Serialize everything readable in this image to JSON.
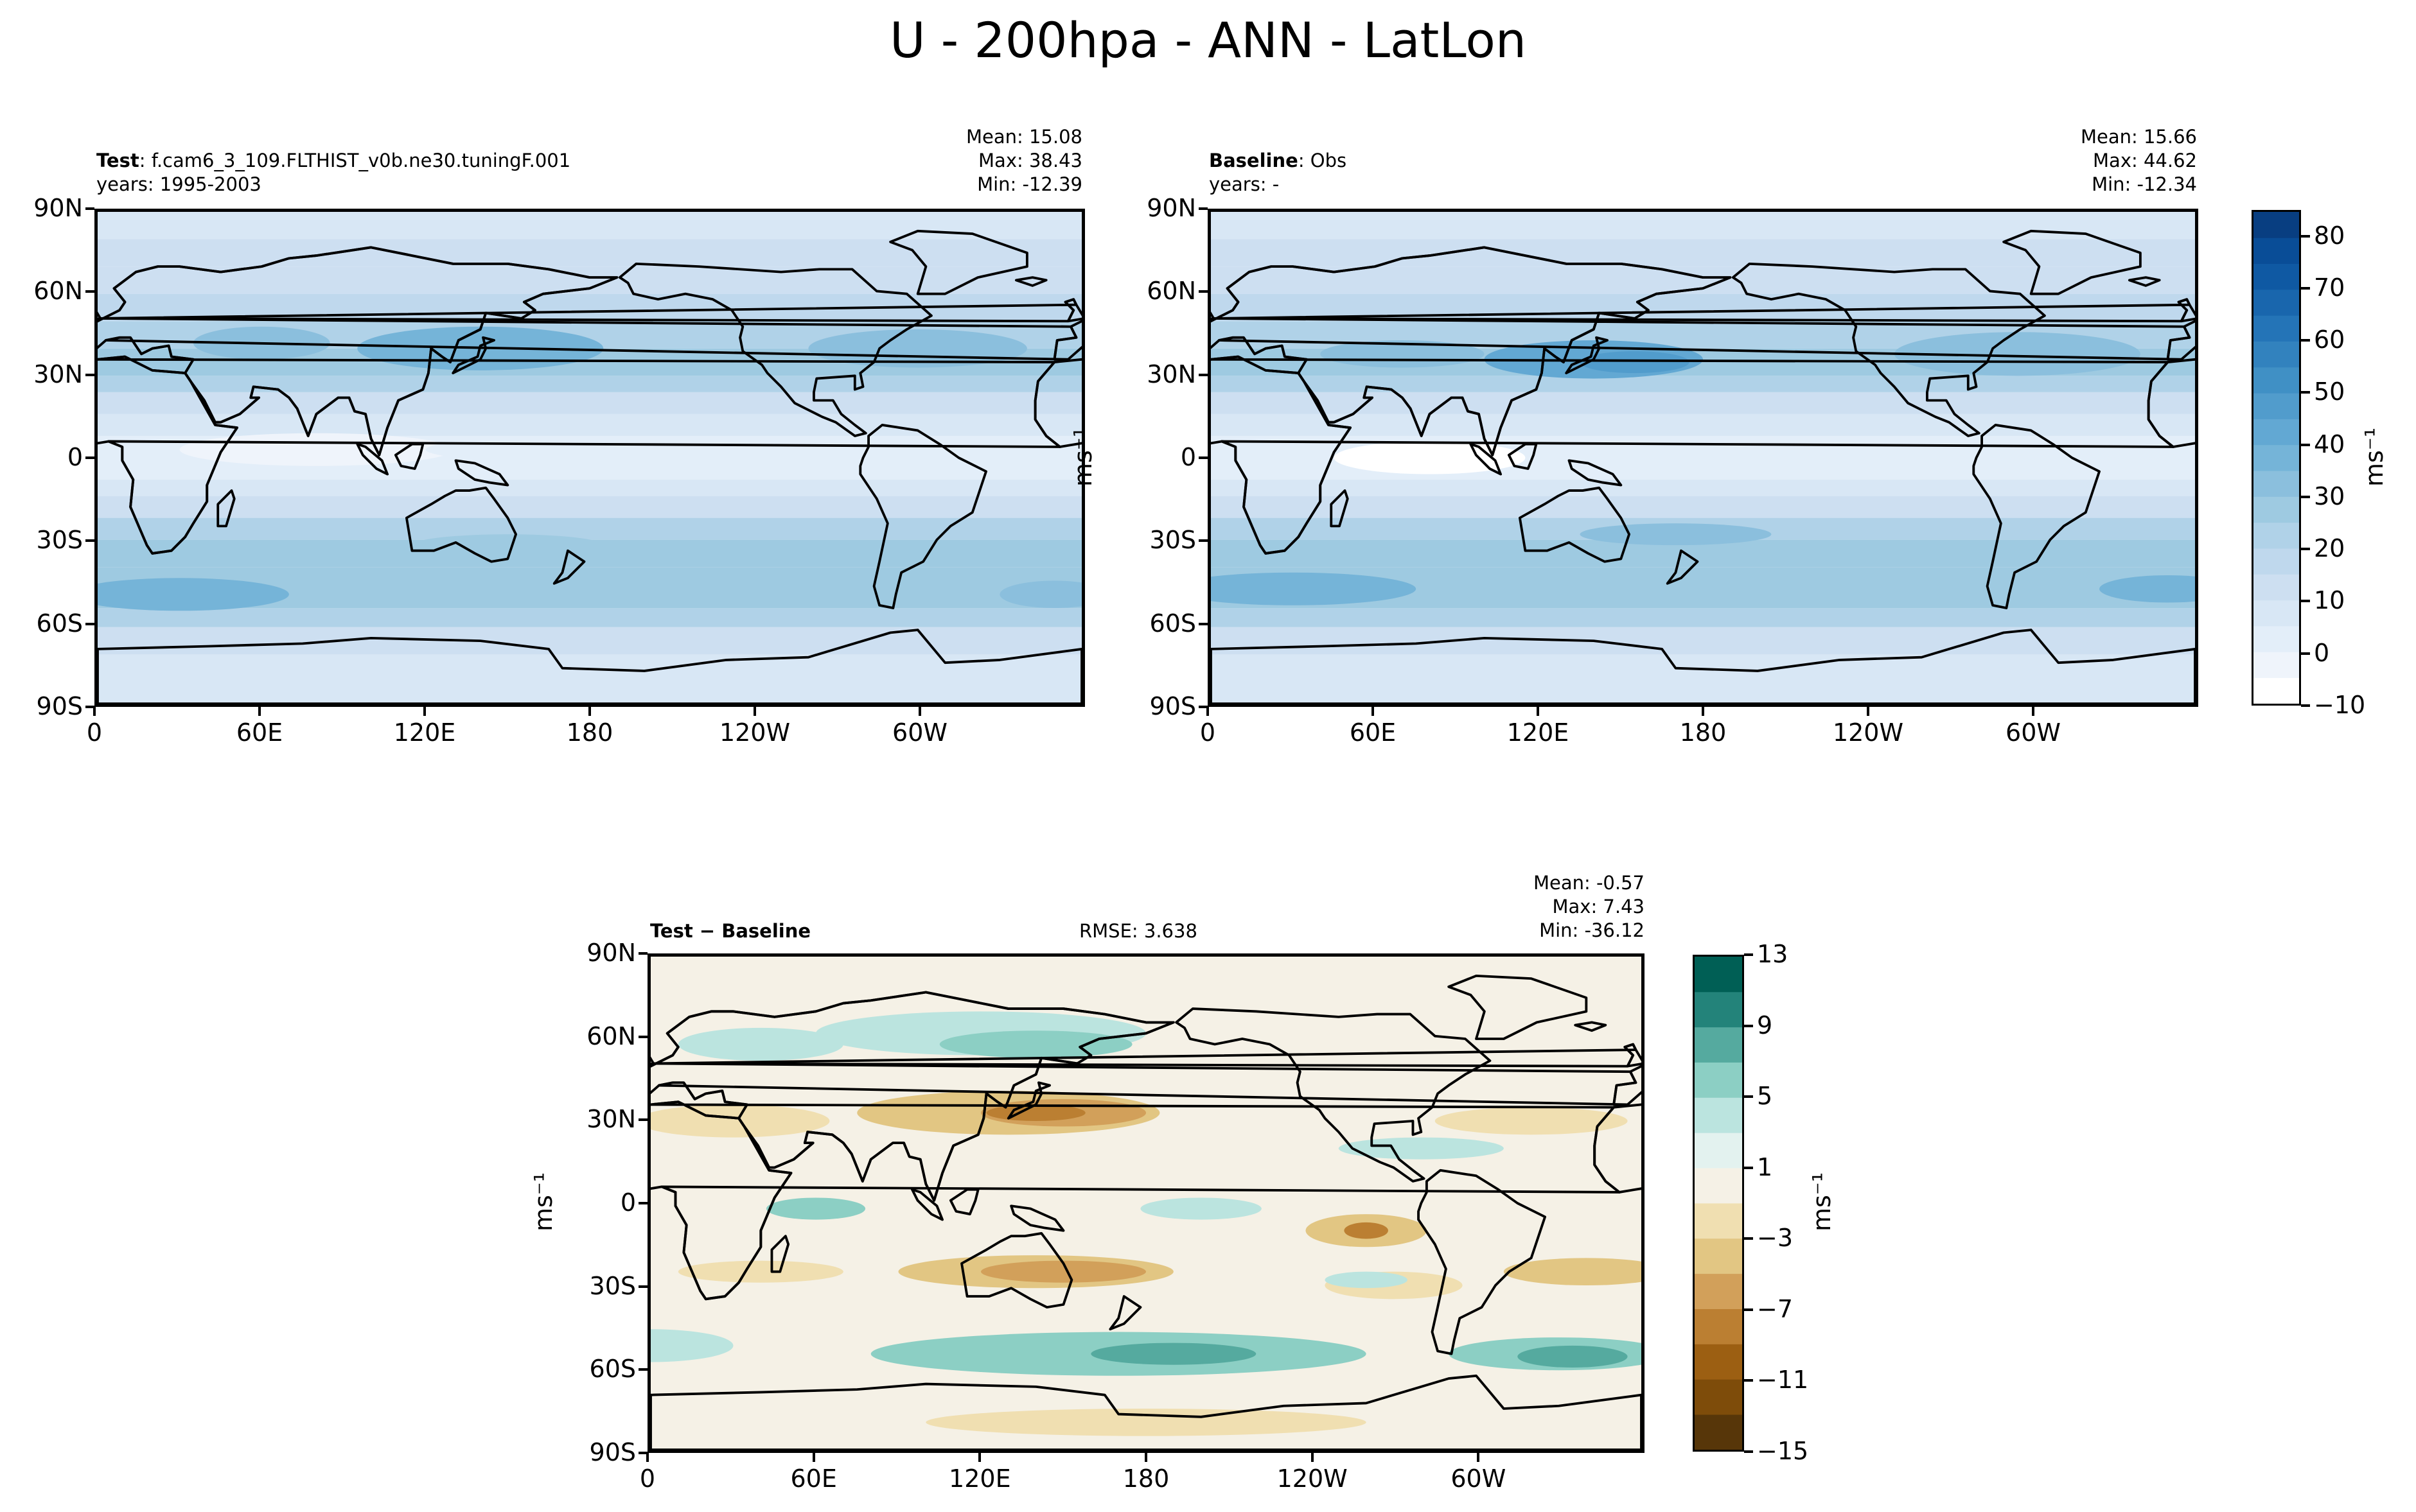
{
  "figure_title": "U - 200hpa - ANN - LatLon",
  "panels": {
    "test": {
      "label_bold": "Test",
      "label_rest": ": f.cam6_3_109.FLTHIST_v0b.ne30.tuningF.001",
      "years": "years: 1995-2003",
      "mean": "Mean: 15.08",
      "max": "Max: 38.43",
      "min": "Min: -12.39"
    },
    "baseline": {
      "label_bold": "Baseline",
      "label_rest": ": Obs",
      "years": "years: -",
      "mean": "Mean: 15.66",
      "max": "Max: 44.62",
      "min": "Min: -12.34"
    },
    "diff": {
      "label": "Test − Baseline",
      "rmse": "RMSE: 3.638",
      "mean": "Mean: -0.57",
      "max": "Max:  7.43",
      "min": "Min: -36.12"
    }
  },
  "units_label": "ms⁻¹",
  "chart_data": [
    {
      "type": "heatmap",
      "name": "Test",
      "projection": "PlateCarree",
      "xlim": [
        0,
        360
      ],
      "ylim": [
        -90,
        90
      ],
      "x_ticks": [
        "0",
        "60E",
        "120E",
        "180",
        "120W",
        "60W"
      ],
      "y_ticks": [
        "90N",
        "60N",
        "30N",
        "0",
        "30S",
        "60S",
        "90S"
      ],
      "stats": {
        "mean": 15.08,
        "max": 38.43,
        "min": -12.39
      }
    },
    {
      "type": "heatmap",
      "name": "Baseline",
      "projection": "PlateCarree",
      "xlim": [
        0,
        360
      ],
      "ylim": [
        -90,
        90
      ],
      "x_ticks": [
        "0",
        "60E",
        "120E",
        "180",
        "120W",
        "60W"
      ],
      "y_ticks": [
        "90N",
        "60N",
        "30N",
        "0",
        "30S",
        "60S",
        "90S"
      ],
      "stats": {
        "mean": 15.66,
        "max": 44.62,
        "min": -12.34
      }
    },
    {
      "type": "heatmap",
      "name": "Test − Baseline",
      "projection": "PlateCarree",
      "xlim": [
        0,
        360
      ],
      "ylim": [
        -90,
        90
      ],
      "x_ticks": [
        "0",
        "60E",
        "120E",
        "180",
        "120W",
        "60W"
      ],
      "y_ticks": [
        "90N",
        "60N",
        "30N",
        "0",
        "30S",
        "60S",
        "90S"
      ],
      "stats": {
        "mean": -0.57,
        "max": 7.43,
        "min": -36.12,
        "rmse": 3.638
      }
    }
  ],
  "colorbars": {
    "field": {
      "levels": [
        -10,
        -5,
        0,
        5,
        10,
        15,
        20,
        25,
        30,
        35,
        40,
        45,
        50,
        55,
        60,
        65,
        70,
        75,
        80,
        85
      ],
      "tick_labels": [
        "−10",
        "0",
        "10",
        "20",
        "30",
        "40",
        "50",
        "60",
        "70",
        "80"
      ],
      "colors": [
        "#ffffff",
        "#eff4fb",
        "#e3eef9",
        "#d8e7f5",
        "#cddff1",
        "#bfd8ed",
        "#b0d2e8",
        "#9ecae1",
        "#8bbfdd",
        "#75b4d8",
        "#62a8d3",
        "#519ccc",
        "#4090c5",
        "#3282be",
        "#2474b7",
        "#1966ad",
        "#0f59a3",
        "#094d97",
        "#083e81"
      ]
    },
    "diff": {
      "levels": [
        -15,
        -13,
        -11,
        -9,
        -7,
        -5,
        -3,
        -1,
        1,
        3,
        5,
        7,
        9,
        11,
        13
      ],
      "tick_labels": [
        "−15",
        "−11",
        "−7",
        "−3",
        "1",
        "5",
        "9",
        "13"
      ],
      "colors": [
        "#573609",
        "#7e4c0a",
        "#9c5f12",
        "#bb7f32",
        "#d2a05a",
        "#e2c683",
        "#f0dfb1",
        "#f5f1e6",
        "#e3f2ef",
        "#bbe4df",
        "#8ccfc4",
        "#55aa9f",
        "#23837a",
        "#005f55"
      ]
    }
  }
}
